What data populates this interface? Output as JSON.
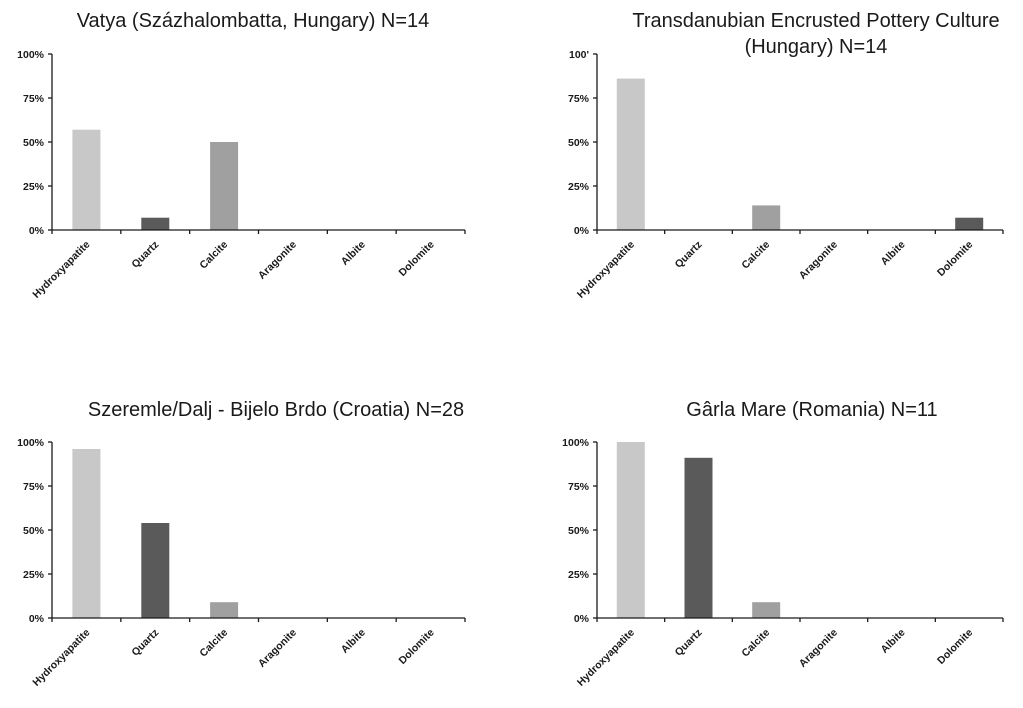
{
  "chart_data": [
    {
      "type": "bar",
      "title_lines": [
        "Vatya (Százhalombatta, Hungary) N=14"
      ],
      "categories": [
        "Hydroxyapatite",
        "Quartz",
        "Calcite",
        "Aragonite",
        "Albite",
        "Dolomite"
      ],
      "values": [
        57,
        7,
        50,
        0,
        0,
        0
      ],
      "ylim": [
        0,
        100
      ],
      "yticks": [
        "0%",
        "25%",
        "50%",
        "75%",
        "100%"
      ],
      "grid": false
    },
    {
      "type": "bar",
      "title_lines": [
        "Transdanubian Encrusted Pottery Culture",
        "(Hungary) N=14"
      ],
      "categories": [
        "Hydroxyapatite",
        "Quartz",
        "Calcite",
        "Aragonite",
        "Albite",
        "Dolomite"
      ],
      "values": [
        86,
        0,
        14,
        0,
        0,
        7
      ],
      "ylim": [
        0,
        100
      ],
      "yticks": [
        "0%",
        "25%",
        "50%",
        "75%",
        "100'"
      ],
      "grid": false
    },
    {
      "type": "bar",
      "title_lines": [
        "Szeremle/Dalj - Bijelo Brdo (Croatia) N=28"
      ],
      "categories": [
        "Hydroxyapatite",
        "Quartz",
        "Calcite",
        "Aragonite",
        "Albite",
        "Dolomite"
      ],
      "values": [
        96,
        54,
        9,
        0,
        0,
        0
      ],
      "ylim": [
        0,
        100
      ],
      "yticks": [
        "0%",
        "25%",
        "50%",
        "75%",
        "100%"
      ],
      "grid": false
    },
    {
      "type": "bar",
      "title_lines": [
        "Gârla Mare (Romania) N=11"
      ],
      "categories": [
        "Hydroxyapatite",
        "Quartz",
        "Calcite",
        "Aragonite",
        "Albite",
        "Dolomite"
      ],
      "values": [
        100,
        91,
        9,
        0,
        0,
        0
      ],
      "ylim": [
        0,
        100
      ],
      "yticks": [
        "0%",
        "25%",
        "50%",
        "75%",
        "100%"
      ],
      "grid": false
    }
  ],
  "colors": {
    "Hydroxyapatite": "#c8c8c8",
    "Quartz": "#5a5a5a",
    "Calcite": "#a0a0a0",
    "Aragonite": "#808080",
    "Albite": "#b4b4b4",
    "Dolomite": "#5a5a5a",
    "axis": "#1a1a1a",
    "text": "#1a1a1a"
  }
}
